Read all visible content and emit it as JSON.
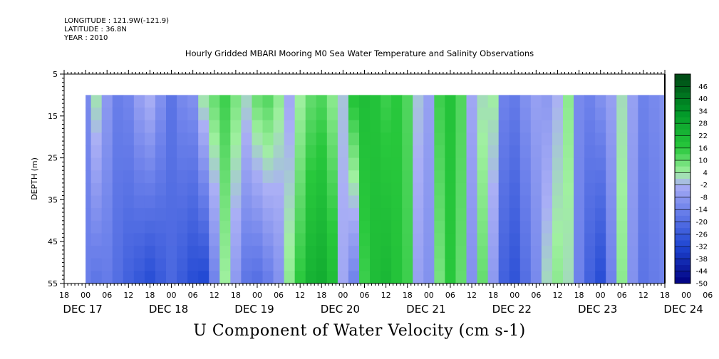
{
  "header": {
    "longitude": "LONGITUDE : 121.9W(-121.9)",
    "latitude": "LATITUDE : 36.8N",
    "year": "YEAR : 2010"
  },
  "title": "Hourly Gridded MBARI Mooring M0 Sea Water Temperature and Salinity Observations",
  "variable_label": "U Component of Water Velocity (cm s-1)",
  "chart_data": {
    "type": "heatmap",
    "title": "Hourly Gridded MBARI Mooring M0 Sea Water Temperature and Salinity Observations",
    "xlabel": "",
    "ylabel": "DEPTH (m)",
    "colorbar_label": "U Component of Water Velocity (cm s-1)",
    "y_ticks": [
      "5",
      "15",
      "25",
      "35",
      "45",
      "55"
    ],
    "ylim": [
      5,
      55
    ],
    "y_reversed": true,
    "data_depth_range": [
      10,
      55
    ],
    "hour_ticks": [
      "18",
      "00",
      "06",
      "12",
      "18",
      "00",
      "06",
      "12",
      "18",
      "00",
      "06",
      "12",
      "18",
      "00",
      "06",
      "12",
      "18",
      "00",
      "06",
      "12",
      "18",
      "00",
      "06",
      "12",
      "18",
      "00",
      "06",
      "12",
      "18",
      "00",
      "06",
      "12",
      "18"
    ],
    "date_labels": [
      "DEC 17",
      "DEC 18",
      "DEC 19",
      "DEC 20",
      "DEC 21",
      "DEC 22",
      "DEC 23",
      "DEC 24"
    ],
    "time_range_hours": [
      -6,
      162
    ],
    "data_time_range_hours": [
      0,
      162
    ],
    "colorbar_levels": [
      "46",
      "40",
      "34",
      "28",
      "22",
      "16",
      "10",
      "4",
      "-2",
      "-8",
      "-14",
      "-20",
      "-26",
      "-32",
      "-38",
      "-44",
      "-50"
    ],
    "colorbar_range": [
      -50,
      52
    ],
    "columns": [
      {
        "hour": 0,
        "surface": -12,
        "bottom": -15
      },
      {
        "hour": 3,
        "surface": 3,
        "bottom": -18
      },
      {
        "hour": 6,
        "surface": -8,
        "bottom": -16
      },
      {
        "hour": 9,
        "surface": -15,
        "bottom": -20
      },
      {
        "hour": 12,
        "surface": -13,
        "bottom": -24
      },
      {
        "hour": 15,
        "surface": -6,
        "bottom": -27
      },
      {
        "hour": 18,
        "surface": -2,
        "bottom": -30
      },
      {
        "hour": 21,
        "surface": -10,
        "bottom": -26
      },
      {
        "hour": 24,
        "surface": -18,
        "bottom": -22
      },
      {
        "hour": 27,
        "surface": -12,
        "bottom": -26
      },
      {
        "hour": 30,
        "surface": -10,
        "bottom": -30
      },
      {
        "hour": 33,
        "surface": 4,
        "bottom": -32
      },
      {
        "hour": 36,
        "surface": 10,
        "bottom": -14
      },
      {
        "hour": 39,
        "surface": 14,
        "bottom": 4
      },
      {
        "hour": 42,
        "surface": 8,
        "bottom": -8
      },
      {
        "hour": 45,
        "surface": 2,
        "bottom": -18
      },
      {
        "hour": 48,
        "surface": 10,
        "bottom": -20
      },
      {
        "hour": 51,
        "surface": 12,
        "bottom": -16
      },
      {
        "hour": 54,
        "surface": 6,
        "bottom": -10
      },
      {
        "hour": 57,
        "surface": -4,
        "bottom": 6
      },
      {
        "hour": 60,
        "surface": 4,
        "bottom": 16
      },
      {
        "hour": 63,
        "surface": 10,
        "bottom": 24
      },
      {
        "hour": 66,
        "surface": 12,
        "bottom": 26
      },
      {
        "hour": 69,
        "surface": 6,
        "bottom": 20
      },
      {
        "hour": 72,
        "surface": 0,
        "bottom": -4
      },
      {
        "hour": 75,
        "surface": 18,
        "bottom": -14
      },
      {
        "hour": 78,
        "surface": 20,
        "bottom": 14
      },
      {
        "hour": 81,
        "surface": 18,
        "bottom": 20
      },
      {
        "hour": 84,
        "surface": 14,
        "bottom": 22
      },
      {
        "hour": 87,
        "surface": 16,
        "bottom": 18
      },
      {
        "hour": 90,
        "surface": 12,
        "bottom": 14
      },
      {
        "hour": 93,
        "surface": 0,
        "bottom": -6
      },
      {
        "hour": 96,
        "surface": -6,
        "bottom": -10
      },
      {
        "hour": 99,
        "surface": 14,
        "bottom": 8
      },
      {
        "hour": 102,
        "surface": 18,
        "bottom": 16
      },
      {
        "hour": 105,
        "surface": 12,
        "bottom": 10
      },
      {
        "hour": 108,
        "surface": -4,
        "bottom": -10
      },
      {
        "hour": 111,
        "surface": 2,
        "bottom": 10
      },
      {
        "hour": 114,
        "surface": 4,
        "bottom": -8
      },
      {
        "hour": 117,
        "surface": -14,
        "bottom": -24
      },
      {
        "hour": 120,
        "surface": -16,
        "bottom": -28
      },
      {
        "hour": 123,
        "surface": -10,
        "bottom": -20
      },
      {
        "hour": 126,
        "surface": -6,
        "bottom": -12
      },
      {
        "hour": 129,
        "surface": -8,
        "bottom": 2
      },
      {
        "hour": 132,
        "surface": -2,
        "bottom": 6
      },
      {
        "hour": 135,
        "surface": 6,
        "bottom": 2
      },
      {
        "hour": 138,
        "surface": -12,
        "bottom": -14
      },
      {
        "hour": 141,
        "surface": -14,
        "bottom": -24
      },
      {
        "hour": 144,
        "surface": -10,
        "bottom": -30
      },
      {
        "hour": 147,
        "surface": -6,
        "bottom": -14
      },
      {
        "hour": 150,
        "surface": 2,
        "bottom": 6
      },
      {
        "hour": 153,
        "surface": -6,
        "bottom": -10
      },
      {
        "hour": 156,
        "surface": -14,
        "bottom": -18
      },
      {
        "hour": 159,
        "surface": -12,
        "bottom": -16
      },
      {
        "hour": 162,
        "surface": -10,
        "bottom": -14
      }
    ]
  }
}
